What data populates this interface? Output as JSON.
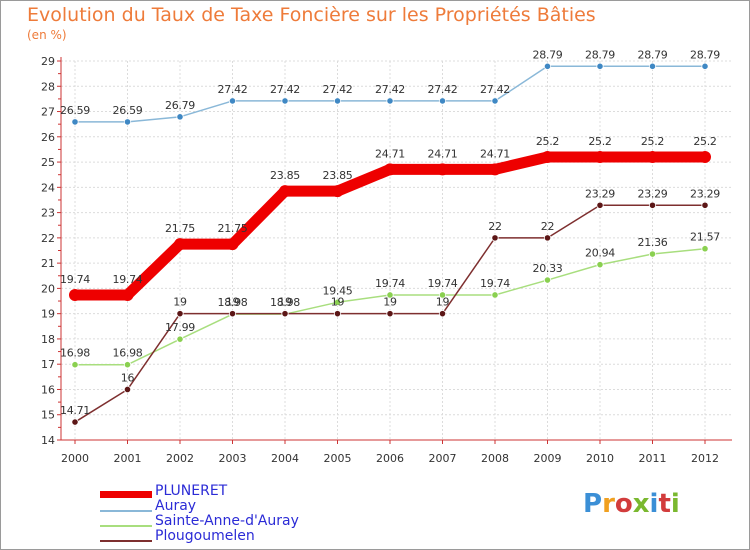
{
  "title": "Evolution du Taux de Taxe Foncière sur les Propriétés Bâties",
  "unit_label": "(en %)",
  "brand": {
    "text": "Proxiti",
    "letter_colors": [
      "#3b8fd6",
      "#f0a020",
      "#d23c3c",
      "#7ab82f",
      "#3b8fd6",
      "#d23c3c",
      "#7ab82f"
    ]
  },
  "chart_data": {
    "type": "line",
    "title": "Evolution du Taux de Taxe Foncière sur les Propriétés Bâties",
    "ylabel": "(en %)",
    "xlabel": "",
    "ylim": [
      14,
      29
    ],
    "y_ticks": [
      14,
      15,
      16,
      17,
      18,
      19,
      20,
      21,
      22,
      23,
      24,
      25,
      26,
      27,
      28,
      29
    ],
    "x": [
      "2000",
      "2001",
      "2002",
      "2003",
      "2004",
      "2005",
      "2006",
      "2007",
      "2008",
      "2009",
      "2010",
      "2011",
      "2012"
    ],
    "grid": true,
    "legend_position": "bottom-left",
    "series": [
      {
        "name": "PLUNERET",
        "color": "#ee0000",
        "marker_color": "#ee0000",
        "bold": true,
        "values": [
          19.74,
          19.74,
          21.75,
          21.75,
          23.85,
          23.85,
          24.71,
          24.71,
          24.71,
          25.2,
          25.2,
          25.2,
          25.2
        ],
        "labels": [
          "19.74",
          "19.74",
          "21.75",
          "21.75",
          "23.85",
          "23.85",
          "24.71",
          "24.71",
          "24.71",
          "25.2",
          "25.2",
          "25.2",
          "25.2"
        ]
      },
      {
        "name": "Auray",
        "color": "#8ab8d8",
        "marker_color": "#3f88c4",
        "bold": false,
        "values": [
          26.59,
          26.59,
          26.79,
          27.42,
          27.42,
          27.42,
          27.42,
          27.42,
          27.42,
          28.79,
          28.79,
          28.79,
          28.79
        ],
        "labels": [
          "26.59",
          "26.59",
          "26.79",
          "27.42",
          "27.42",
          "27.42",
          "27.42",
          "27.42",
          "27.42",
          "28.79",
          "28.79",
          "28.79",
          "28.79"
        ]
      },
      {
        "name": "Sainte-Anne-d'Auray",
        "color": "#a8de7e",
        "marker_color": "#8ad050",
        "bold": false,
        "values": [
          16.98,
          16.98,
          17.99,
          18.98,
          18.98,
          19.45,
          19.74,
          19.74,
          19.74,
          20.33,
          20.94,
          21.36,
          21.57
        ],
        "labels": [
          "16.98",
          "16.98",
          "17.99",
          "18.98",
          "18.98",
          "19.45",
          "19.74",
          "19.74",
          "19.74",
          "20.33",
          "20.94",
          "21.36",
          "21.57"
        ]
      },
      {
        "name": "Plougoumelen",
        "color": "#7e2f2f",
        "marker_color": "#5c1616",
        "bold": false,
        "values": [
          14.71,
          16,
          19,
          19,
          19,
          19,
          19,
          19,
          22,
          22,
          23.29,
          23.29,
          23.29
        ],
        "labels": [
          "14.71",
          "16",
          "19",
          "19",
          "19",
          "19",
          "19",
          "19",
          "22",
          "22",
          "23.29",
          "23.29",
          "23.29"
        ]
      }
    ]
  }
}
